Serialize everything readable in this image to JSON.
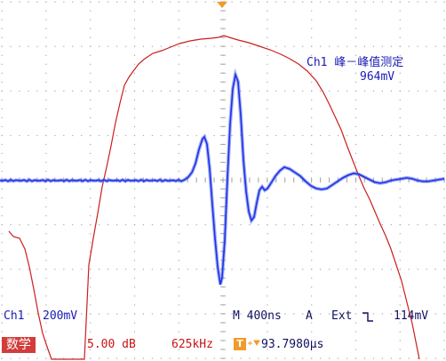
{
  "measurement": {
    "label": "Ch1 峰－峰值测定",
    "value": "964mV"
  },
  "channel": {
    "name": "Ch1",
    "scale": "200mV"
  },
  "timebase": {
    "label": "M 400ns",
    "mode": "A",
    "source": "Ext",
    "slope_icon": "falling-edge-icon",
    "level": "114mV"
  },
  "math": {
    "badge": "数学",
    "scale": "5.00 dB",
    "freq": "625kHz"
  },
  "trigger": {
    "badge": "T",
    "position": "93.7980µs"
  },
  "colors": {
    "waveform": "#1e32e6",
    "fft": "#cc1e1e",
    "grid": "#a8a8a8",
    "text": "#1a1ab4",
    "accent": "#f29a2a"
  }
}
